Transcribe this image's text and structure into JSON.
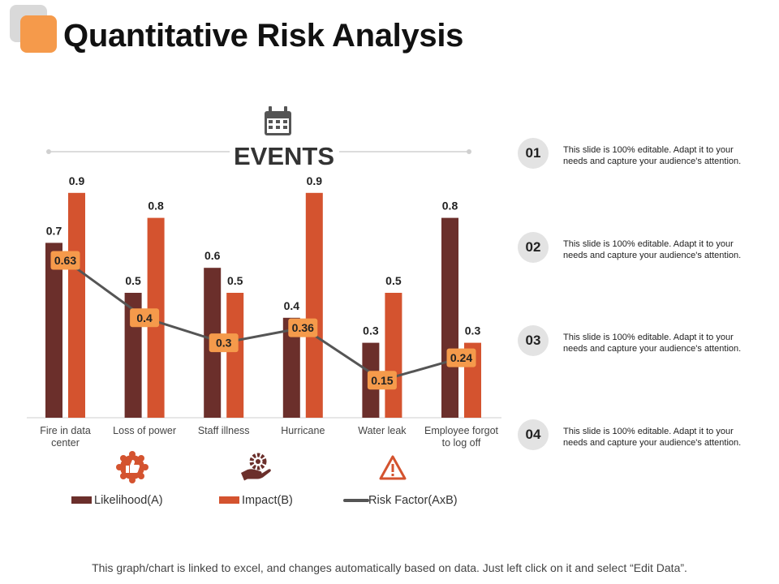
{
  "page": {
    "title": "Quantitative Risk Analysis"
  },
  "events_label": "EVENTS",
  "chart_data": {
    "type": "bar",
    "title": "",
    "categories": [
      [
        "Fire in data",
        "center"
      ],
      [
        "Loss of power"
      ],
      [
        "Staff illness"
      ],
      [
        "Hurricane"
      ],
      [
        "Water leak"
      ],
      [
        "Employee forgot",
        "to log off"
      ]
    ],
    "series": [
      {
        "name": "Likelihood(A)",
        "type": "bar",
        "color": "#6b2f2b",
        "values": [
          0.7,
          0.5,
          0.6,
          0.4,
          0.3,
          0.8
        ]
      },
      {
        "name": "Impact(B)",
        "type": "bar",
        "color": "#d4532f",
        "values": [
          0.9,
          0.8,
          0.5,
          0.9,
          0.5,
          0.3
        ]
      },
      {
        "name": "Risk Factor(AxB)",
        "type": "line",
        "color": "#555555",
        "label_color": "#f59a4b",
        "values": [
          0.63,
          0.4,
          0.3,
          0.36,
          0.15,
          0.24
        ]
      }
    ],
    "ylim": [
      0,
      1
    ],
    "grid": false,
    "legend": "bottom"
  },
  "icons": [
    "thumbs-up-badge-icon",
    "gear-hand-icon",
    "warning-triangle-icon"
  ],
  "items": [
    {
      "num": "01",
      "text": "This slide is 100% editable. Adapt it to your needs and capture your audience's attention."
    },
    {
      "num": "02",
      "text": "This slide is 100% editable. Adapt it to your needs and capture your audience's attention."
    },
    {
      "num": "03",
      "text": "This slide is 100% editable. Adapt it to your needs and capture your audience's attention."
    },
    {
      "num": "04",
      "text": "This slide is 100% editable. Adapt it to your needs and capture your audience's attention."
    }
  ],
  "footer": "This graph/chart is linked to excel, and changes automatically based on data.  Just left click on it and select “Edit Data”."
}
